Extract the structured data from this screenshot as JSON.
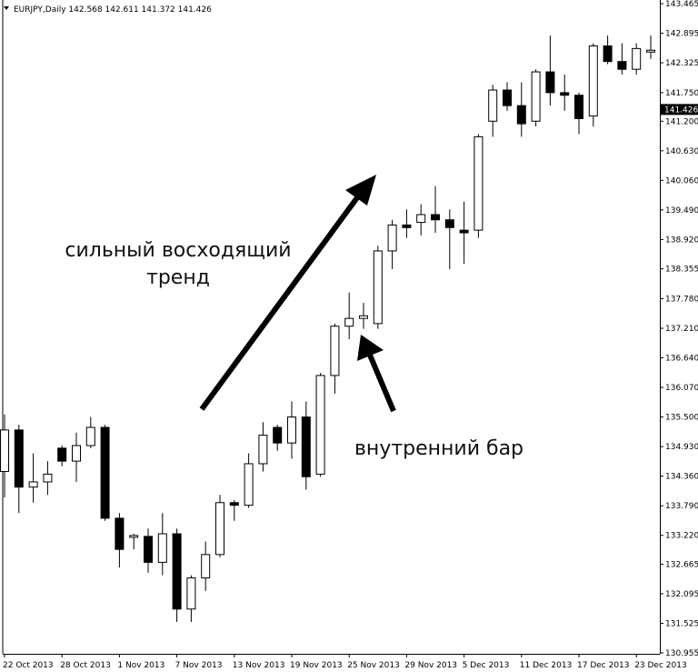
{
  "chart_data": {
    "type": "candlestick",
    "symbol_line": "EURJPY,Daily  142.568 142.611 141.372 141.426",
    "current_price_label": "141.426",
    "current_price": 141.426,
    "ylim": [
      130.955,
      143.465
    ],
    "y_ticks": [
      "143.465",
      "142.895",
      "142.325",
      "141.750",
      "141.200",
      "140.630",
      "140.060",
      "139.490",
      "138.920",
      "138.355",
      "137.780",
      "137.210",
      "136.640",
      "136.070",
      "135.500",
      "134.930",
      "134.360",
      "133.790",
      "133.220",
      "132.665",
      "132.095",
      "131.525",
      "130.955"
    ],
    "x_tick_labels": [
      "22 Oct 2013",
      "28 Oct 2013",
      "1 Nov 2013",
      "7 Nov 2013",
      "13 Nov 2013",
      "19 Nov 2013",
      "25 Nov 2013",
      "29 Nov 2013",
      "5 Dec 2013",
      "11 Dec 2013",
      "17 Dec 2013",
      "23 Dec 2013"
    ],
    "x_tick_index": [
      0,
      4,
      8,
      12,
      16,
      20,
      24,
      28,
      32,
      36,
      40,
      44
    ],
    "candles": [
      {
        "o": 134.45,
        "h": 135.55,
        "l": 133.95,
        "c": 135.25
      },
      {
        "o": 135.25,
        "h": 135.35,
        "l": 133.65,
        "c": 134.15
      },
      {
        "o": 134.15,
        "h": 134.8,
        "l": 133.85,
        "c": 134.25
      },
      {
        "o": 134.25,
        "h": 134.65,
        "l": 134.0,
        "c": 134.4
      },
      {
        "o": 134.9,
        "h": 134.95,
        "l": 134.55,
        "c": 134.65
      },
      {
        "o": 134.65,
        "h": 135.2,
        "l": 134.25,
        "c": 134.95
      },
      {
        "o": 134.95,
        "h": 135.5,
        "l": 134.9,
        "c": 135.3
      },
      {
        "o": 135.3,
        "h": 135.35,
        "l": 133.5,
        "c": 133.55
      },
      {
        "o": 133.55,
        "h": 133.65,
        "l": 132.6,
        "c": 132.95
      },
      {
        "o": 133.2,
        "h": 133.25,
        "l": 132.95,
        "c": 133.2
      },
      {
        "o": 133.2,
        "h": 133.35,
        "l": 132.5,
        "c": 132.7
      },
      {
        "o": 132.7,
        "h": 133.65,
        "l": 132.45,
        "c": 133.25
      },
      {
        "o": 133.25,
        "h": 133.35,
        "l": 131.55,
        "c": 131.8
      },
      {
        "o": 131.8,
        "h": 132.45,
        "l": 131.55,
        "c": 132.4
      },
      {
        "o": 132.4,
        "h": 133.1,
        "l": 132.15,
        "c": 132.85
      },
      {
        "o": 132.85,
        "h": 134.0,
        "l": 132.8,
        "c": 133.85
      },
      {
        "o": 133.85,
        "h": 133.9,
        "l": 133.5,
        "c": 133.8
      },
      {
        "o": 133.8,
        "h": 134.8,
        "l": 133.75,
        "c": 134.6
      },
      {
        "o": 134.6,
        "h": 135.4,
        "l": 134.45,
        "c": 135.15
      },
      {
        "o": 135.3,
        "h": 135.35,
        "l": 134.85,
        "c": 135.0
      },
      {
        "o": 135.0,
        "h": 135.8,
        "l": 134.7,
        "c": 135.5
      },
      {
        "o": 135.5,
        "h": 135.8,
        "l": 134.1,
        "c": 134.35
      },
      {
        "o": 134.4,
        "h": 136.35,
        "l": 134.35,
        "c": 136.3
      },
      {
        "o": 136.3,
        "h": 137.3,
        "l": 135.95,
        "c": 137.25
      },
      {
        "o": 137.25,
        "h": 137.9,
        "l": 137.0,
        "c": 137.4
      },
      {
        "o": 137.4,
        "h": 137.7,
        "l": 137.2,
        "c": 137.45
      },
      {
        "o": 137.3,
        "h": 138.8,
        "l": 137.2,
        "c": 138.7
      },
      {
        "o": 138.7,
        "h": 139.3,
        "l": 138.35,
        "c": 139.2
      },
      {
        "o": 139.2,
        "h": 139.5,
        "l": 138.95,
        "c": 139.15
      },
      {
        "o": 139.25,
        "h": 139.6,
        "l": 139.0,
        "c": 139.4
      },
      {
        "o": 139.4,
        "h": 139.95,
        "l": 139.05,
        "c": 139.3
      },
      {
        "o": 139.3,
        "h": 139.5,
        "l": 138.35,
        "c": 139.15
      },
      {
        "o": 139.1,
        "h": 139.65,
        "l": 138.45,
        "c": 139.05
      },
      {
        "o": 139.1,
        "h": 140.95,
        "l": 138.95,
        "c": 140.9
      },
      {
        "o": 141.2,
        "h": 141.9,
        "l": 140.9,
        "c": 141.8
      },
      {
        "o": 141.8,
        "h": 141.95,
        "l": 141.4,
        "c": 141.5
      },
      {
        "o": 141.5,
        "h": 141.95,
        "l": 140.9,
        "c": 141.15
      },
      {
        "o": 141.2,
        "h": 142.2,
        "l": 141.1,
        "c": 142.15
      },
      {
        "o": 142.15,
        "h": 142.85,
        "l": 141.5,
        "c": 141.75
      },
      {
        "o": 141.75,
        "h": 142.1,
        "l": 141.4,
        "c": 141.7
      },
      {
        "o": 141.7,
        "h": 141.75,
        "l": 140.95,
        "c": 141.25
      },
      {
        "o": 141.3,
        "h": 142.7,
        "l": 141.1,
        "c": 142.65
      },
      {
        "o": 142.65,
        "h": 142.85,
        "l": 142.3,
        "c": 142.35
      },
      {
        "o": 142.35,
        "h": 142.7,
        "l": 142.1,
        "c": 142.2
      },
      {
        "o": 142.2,
        "h": 142.7,
        "l": 142.1,
        "c": 142.6
      },
      {
        "o": 142.55,
        "h": 142.85,
        "l": 142.4,
        "c": 142.55
      }
    ],
    "annotations": {
      "trend_line1": "сильный восходящий",
      "trend_line2": "тренд",
      "inside_bar": "внутренний бар"
    }
  }
}
